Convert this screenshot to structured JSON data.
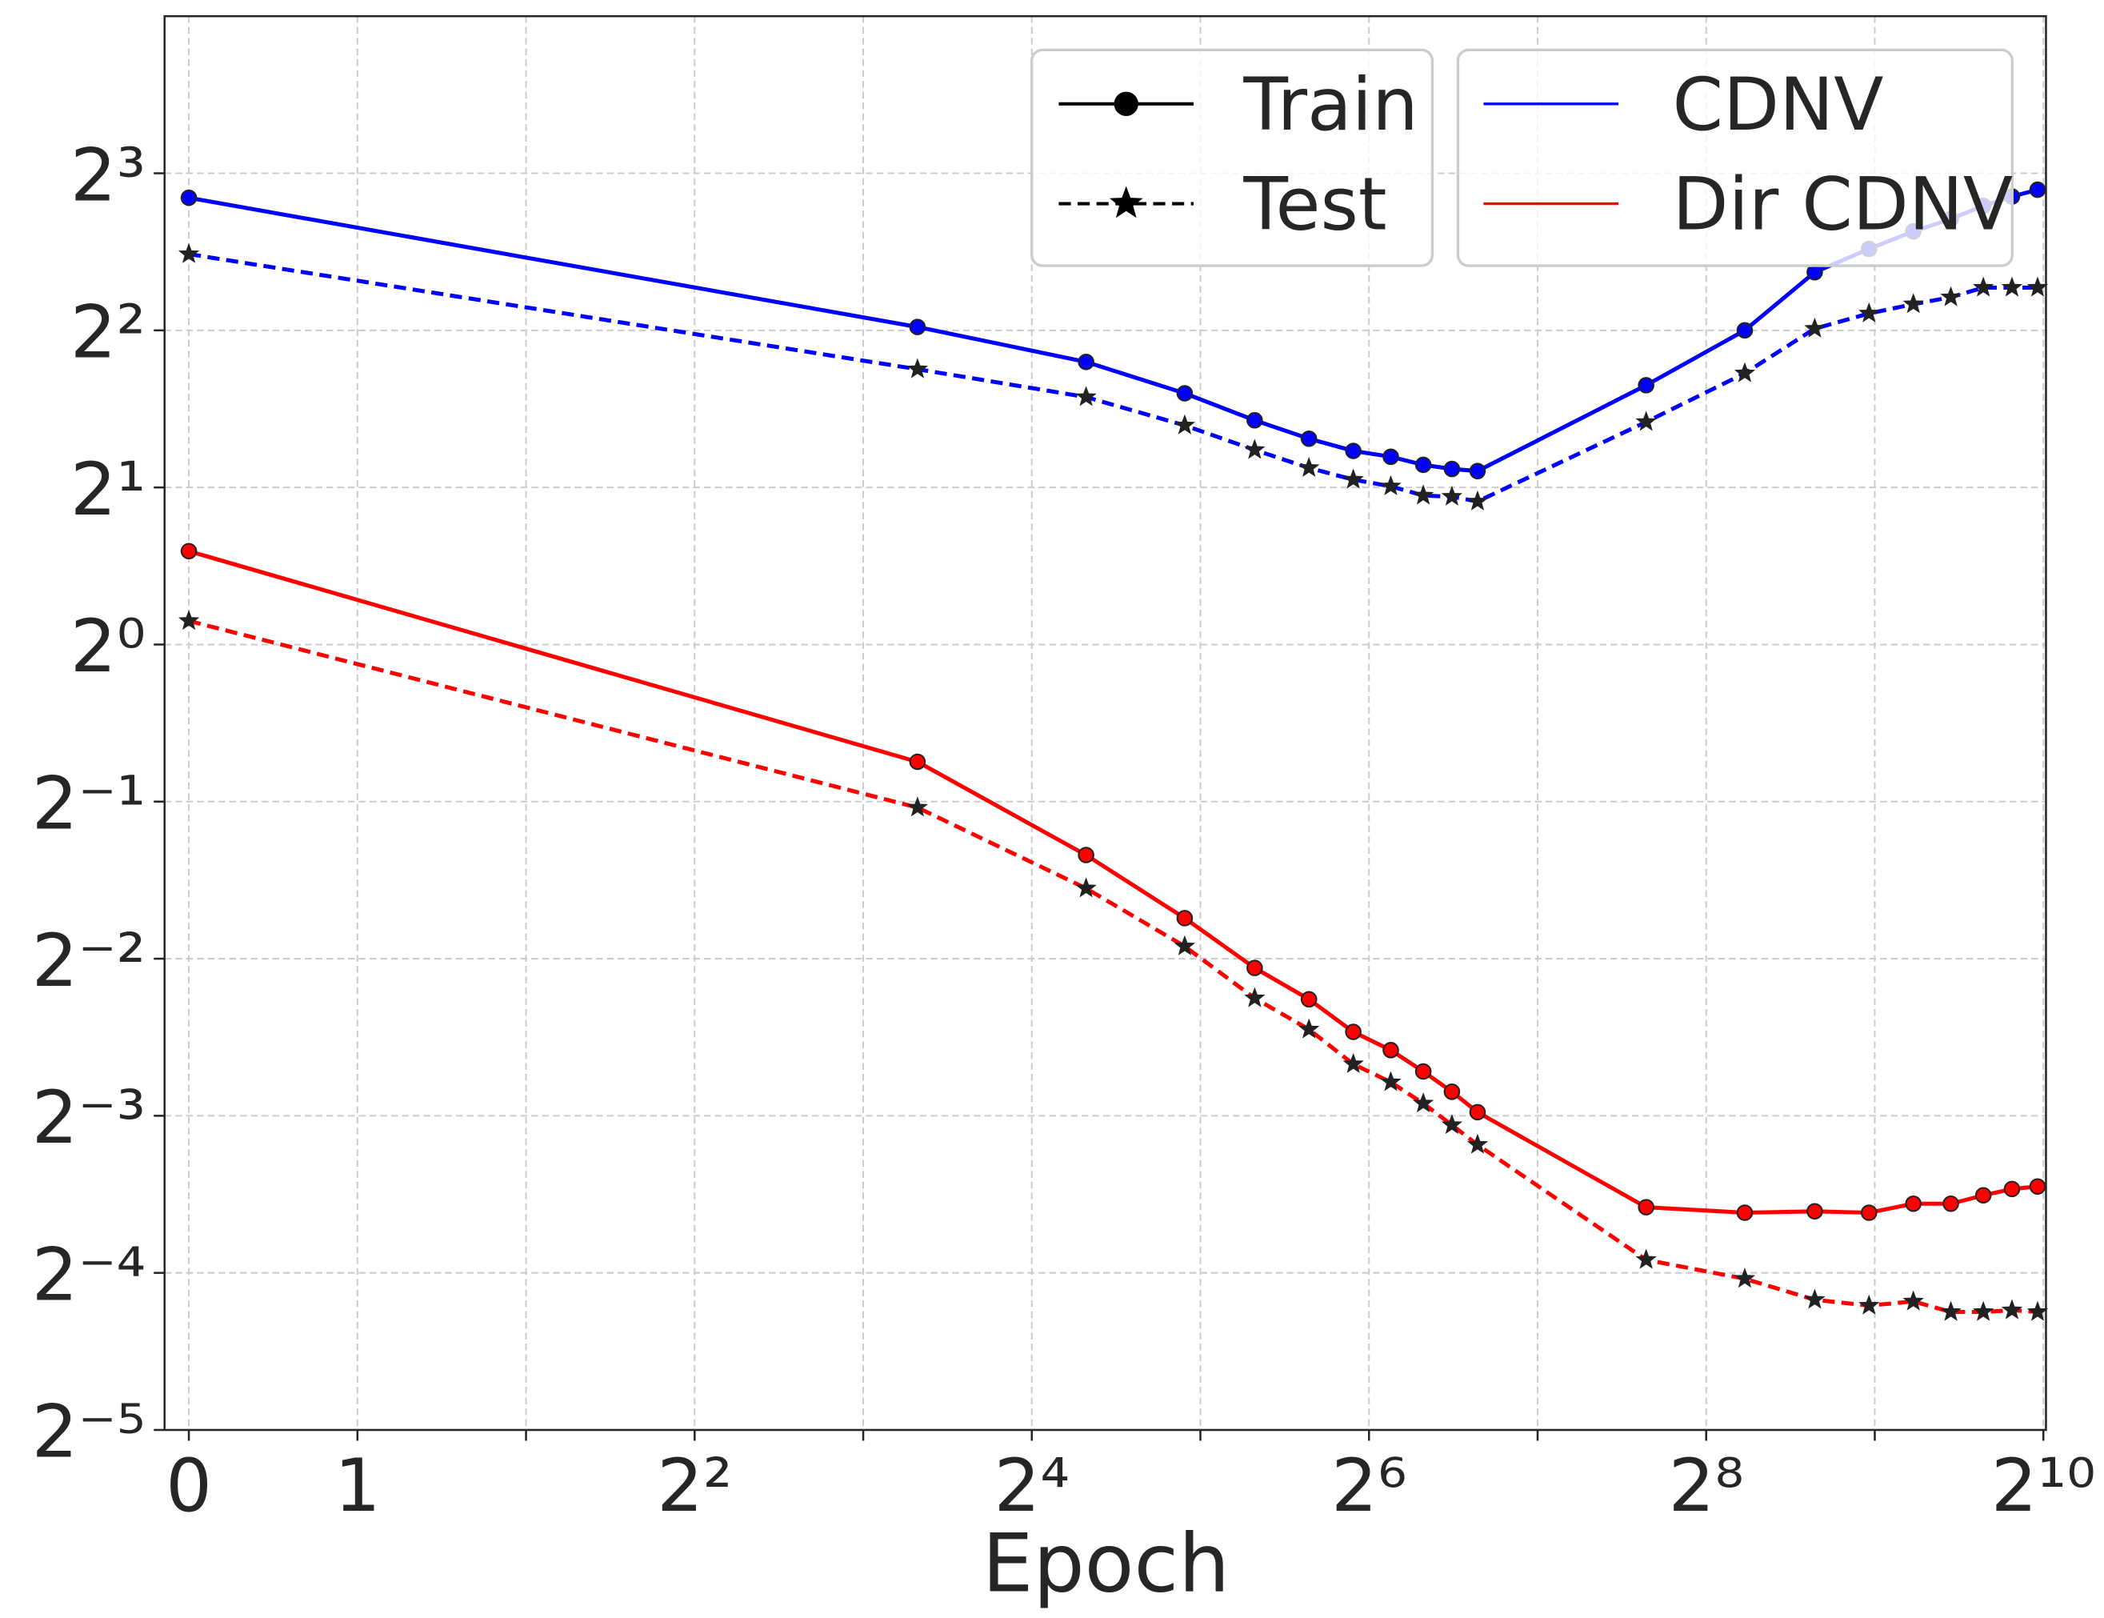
{
  "chart_data": {
    "type": "line",
    "xlabel": "Epoch",
    "x_scale": "symlog2",
    "y_scale": "log2",
    "grid": true,
    "legend_loc": "upper right",
    "x": [
      0,
      10,
      20,
      30,
      40,
      50,
      60,
      70,
      80,
      90,
      100,
      200,
      300,
      400,
      500,
      600,
      700,
      800,
      900,
      1000
    ],
    "xlim": [
      -0.144,
      1035
    ],
    "xticks": [
      0,
      1,
      {
        "value": 4,
        "label": "2²"
      },
      {
        "value": 16,
        "label": "2⁴"
      },
      {
        "value": 64,
        "label": "2⁶"
      },
      {
        "value": 256,
        "label": "2⁸"
      },
      {
        "value": 1024,
        "label": "2¹⁰"
      }
    ],
    "xminor": [
      2,
      8,
      32,
      128,
      512
    ],
    "ylim": [
      0.03125,
      16
    ],
    "yticks": [
      {
        "value": 0.03125,
        "label": "2⁻⁵"
      },
      {
        "value": 0.0625,
        "label": "2⁻⁴"
      },
      {
        "value": 0.125,
        "label": "2⁻³"
      },
      {
        "value": 0.25,
        "label": "2⁻²"
      },
      {
        "value": 0.5,
        "label": "2⁻¹"
      },
      {
        "value": 1,
        "label": "2⁰"
      },
      {
        "value": 2,
        "label": "2¹"
      },
      {
        "value": 4,
        "label": "2²"
      },
      {
        "value": 8,
        "label": "2³"
      }
    ],
    "line_styles": [
      {
        "name": "Train",
        "dash": "solid",
        "marker": "circle"
      },
      {
        "name": "Test",
        "dash": "dashed",
        "marker": "star"
      }
    ],
    "series": [
      {
        "name": "CDNV",
        "color": "#0000ff",
        "train": [
          7.18,
          4.06,
          3.48,
          3.03,
          2.69,
          2.48,
          2.35,
          2.29,
          2.21,
          2.17,
          2.15,
          3.14,
          4.0,
          5.17,
          5.73,
          6.19,
          6.54,
          6.93,
          7.22,
          7.44
        ],
        "test": [
          5.6,
          3.37,
          2.98,
          2.63,
          2.36,
          2.18,
          2.07,
          2.01,
          1.93,
          1.92,
          1.88,
          2.67,
          3.31,
          4.03,
          4.31,
          4.49,
          4.63,
          4.83,
          4.83,
          4.83
        ]
      },
      {
        "name": "Dir CDNV",
        "color": "#ff0000",
        "train": [
          1.51,
          0.596,
          0.395,
          0.299,
          0.24,
          0.209,
          0.181,
          0.167,
          0.152,
          0.139,
          0.127,
          0.0835,
          0.0815,
          0.082,
          0.0815,
          0.0848,
          0.0848,
          0.088,
          0.0905,
          0.0915
        ],
        "test": [
          1.11,
          0.487,
          0.341,
          0.264,
          0.21,
          0.183,
          0.157,
          0.145,
          0.132,
          0.12,
          0.11,
          0.0662,
          0.0609,
          0.0555,
          0.0541,
          0.0551,
          0.0526,
          0.0526,
          0.053,
          0.0526
        ]
      }
    ]
  }
}
